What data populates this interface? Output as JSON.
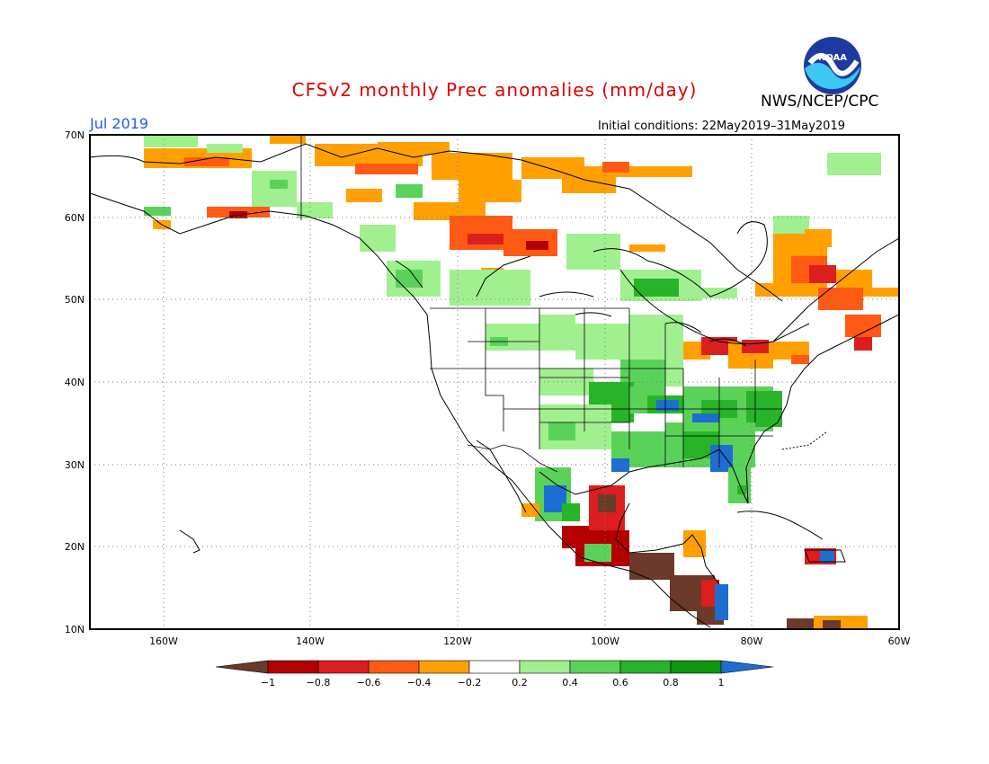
{
  "header": {
    "title": "CFSv2 monthly Prec anomalies (mm/day)",
    "agency": "NWS/NCEP/CPC",
    "month": "Jul 2019",
    "initial_conditions": "Initial conditions: 22May2019–31May2019",
    "logo_text": "NOAA"
  },
  "map": {
    "lon_range": [
      -170,
      -60
    ],
    "lat_range": [
      10,
      70
    ],
    "lat_labels": [
      "70N",
      "60N",
      "50N",
      "40N",
      "30N",
      "20N",
      "10N"
    ],
    "lon_labels": [
      "160W",
      "140W",
      "120W",
      "100W",
      "80W",
      "60W"
    ]
  },
  "legend": {
    "labels": [
      "−1",
      "−0.8",
      "−0.6",
      "−0.4",
      "−0.2",
      "0.2",
      "0.4",
      "0.6",
      "0.8",
      "1"
    ],
    "colors": [
      "#6b3a2a",
      "#b40000",
      "#dc1e1e",
      "#ff5a14",
      "#ffa000",
      "#ffffff",
      "#a0f090",
      "#5ad25a",
      "#28b428",
      "#0f960f",
      "#1e6ed2"
    ]
  }
}
